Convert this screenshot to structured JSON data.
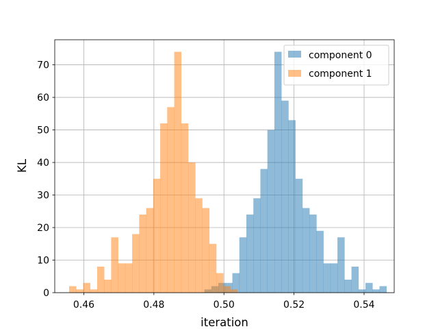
{
  "chart_data": {
    "type": "bar",
    "subtype": "histogram",
    "xlabel": "iteration",
    "ylabel": "KL",
    "xlim": [
      0.4517,
      0.5486
    ],
    "ylim": [
      0,
      77.7
    ],
    "xticks": [
      0.46,
      0.48,
      0.5,
      0.52,
      0.54
    ],
    "xtick_labels": [
      "0.46",
      "0.48",
      "0.50",
      "0.52",
      "0.54"
    ],
    "yticks": [
      0,
      10,
      20,
      30,
      40,
      50,
      60,
      70
    ],
    "ytick_labels": [
      "0",
      "10",
      "20",
      "30",
      "40",
      "50",
      "60",
      "70"
    ],
    "grid": true,
    "legend_position": "upper right",
    "bar_alpha": 0.5,
    "series": [
      {
        "name": "component 0",
        "color": "#1f77b4",
        "bin_start": 0.4944,
        "bin_width": 0.002,
        "counts": [
          1,
          2,
          3,
          3,
          6,
          17,
          24,
          29,
          38,
          50,
          74,
          59,
          53,
          35,
          26,
          24,
          19,
          9,
          9,
          17,
          4,
          8,
          1,
          3,
          1,
          2
        ]
      },
      {
        "name": "component 1",
        "color": "#ff7f0e",
        "bin_start": 0.4558,
        "bin_width": 0.002,
        "counts": [
          2,
          1,
          3,
          1,
          8,
          4,
          17,
          9,
          9,
          18,
          24,
          26,
          35,
          52,
          57,
          74,
          52,
          40,
          29,
          26,
          15,
          6,
          2,
          1
        ]
      }
    ]
  }
}
